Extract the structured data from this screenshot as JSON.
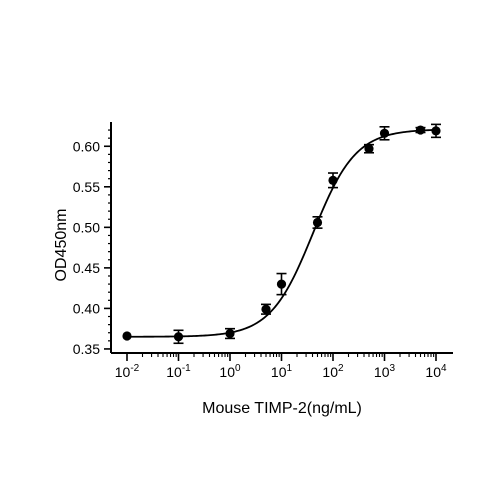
{
  "chart_data": {
    "type": "scatter",
    "title": "",
    "xlabel": "Mouse TIMP-2(ng/mL)",
    "ylabel": "OD450nm",
    "x_scale": "log",
    "xlim": [
      0.01,
      10000
    ],
    "ylim": [
      0.345,
      0.625
    ],
    "x_ticks": [
      {
        "value": 0.01,
        "base": "10",
        "exp": "-2"
      },
      {
        "value": 0.1,
        "base": "10",
        "exp": "-1"
      },
      {
        "value": 1,
        "base": "10",
        "exp": "0"
      },
      {
        "value": 10,
        "base": "10",
        "exp": "1"
      },
      {
        "value": 100,
        "base": "10",
        "exp": "2"
      },
      {
        "value": 1000,
        "base": "10",
        "exp": "3"
      },
      {
        "value": 10000,
        "base": "10",
        "exp": "4"
      }
    ],
    "y_ticks": [
      {
        "value": 0.35,
        "label": "0.35"
      },
      {
        "value": 0.4,
        "label": "0.40"
      },
      {
        "value": 0.45,
        "label": "0.45"
      },
      {
        "value": 0.5,
        "label": "0.50"
      },
      {
        "value": 0.55,
        "label": "0.55"
      },
      {
        "value": 0.6,
        "label": "0.60"
      }
    ],
    "grid": false,
    "series": [
      {
        "points": [
          {
            "x": 0.01,
            "y": 0.366,
            "err": 0.0
          },
          {
            "x": 0.1,
            "y": 0.365,
            "err": 0.008
          },
          {
            "x": 1,
            "y": 0.369,
            "err": 0.006
          },
          {
            "x": 5,
            "y": 0.399,
            "err": 0.006
          },
          {
            "x": 10,
            "y": 0.43,
            "err": 0.013
          },
          {
            "x": 50,
            "y": 0.506,
            "err": 0.007
          },
          {
            "x": 100,
            "y": 0.558,
            "err": 0.009
          },
          {
            "x": 500,
            "y": 0.597,
            "err": 0.005
          },
          {
            "x": 1000,
            "y": 0.616,
            "err": 0.008
          },
          {
            "x": 5000,
            "y": 0.62,
            "err": 0.003
          },
          {
            "x": 10000,
            "y": 0.619,
            "err": 0.008
          }
        ],
        "fit": {
          "model": "4PL",
          "bottom": 0.365,
          "top": 0.621,
          "ec50": 41,
          "hill": 1.05
        },
        "color": "#000000"
      }
    ]
  }
}
